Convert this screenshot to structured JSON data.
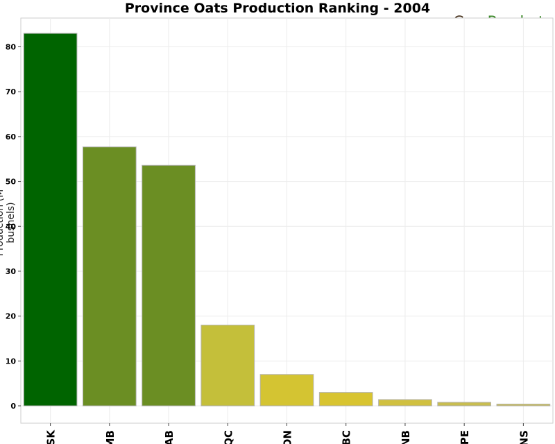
{
  "title": "Province Oats Production Ranking - 2004",
  "brand": {
    "part1": "Crop",
    "part2": "Prophet"
  },
  "colors": {
    "primary": "#006400",
    "brand_dark": "#4a3520",
    "brand_green": "#3d8a2a"
  },
  "chart_data": {
    "type": "bar",
    "title": "Province Oats Production Ranking - 2004",
    "xlabel": "",
    "ylabel": "Production (M bushels)",
    "categories": [
      "SK",
      "MB",
      "AB",
      "QC",
      "ON",
      "BC",
      "NB",
      "PE",
      "NS"
    ],
    "values": [
      83.0,
      57.7,
      53.6,
      18.0,
      7.0,
      3.0,
      1.4,
      0.8,
      0.4
    ],
    "colors": [
      "#006400",
      "#6b8e23",
      "#6b8e23",
      "#c4bf3a",
      "#d4c432",
      "#d8c430",
      "#d0c040",
      "#c8bd50",
      "#cabd55"
    ],
    "ylim": [
      0,
      85
    ],
    "yticks": [
      0,
      10,
      20,
      30,
      40,
      50,
      60,
      70,
      80
    ],
    "grid": true,
    "legend": "none"
  }
}
